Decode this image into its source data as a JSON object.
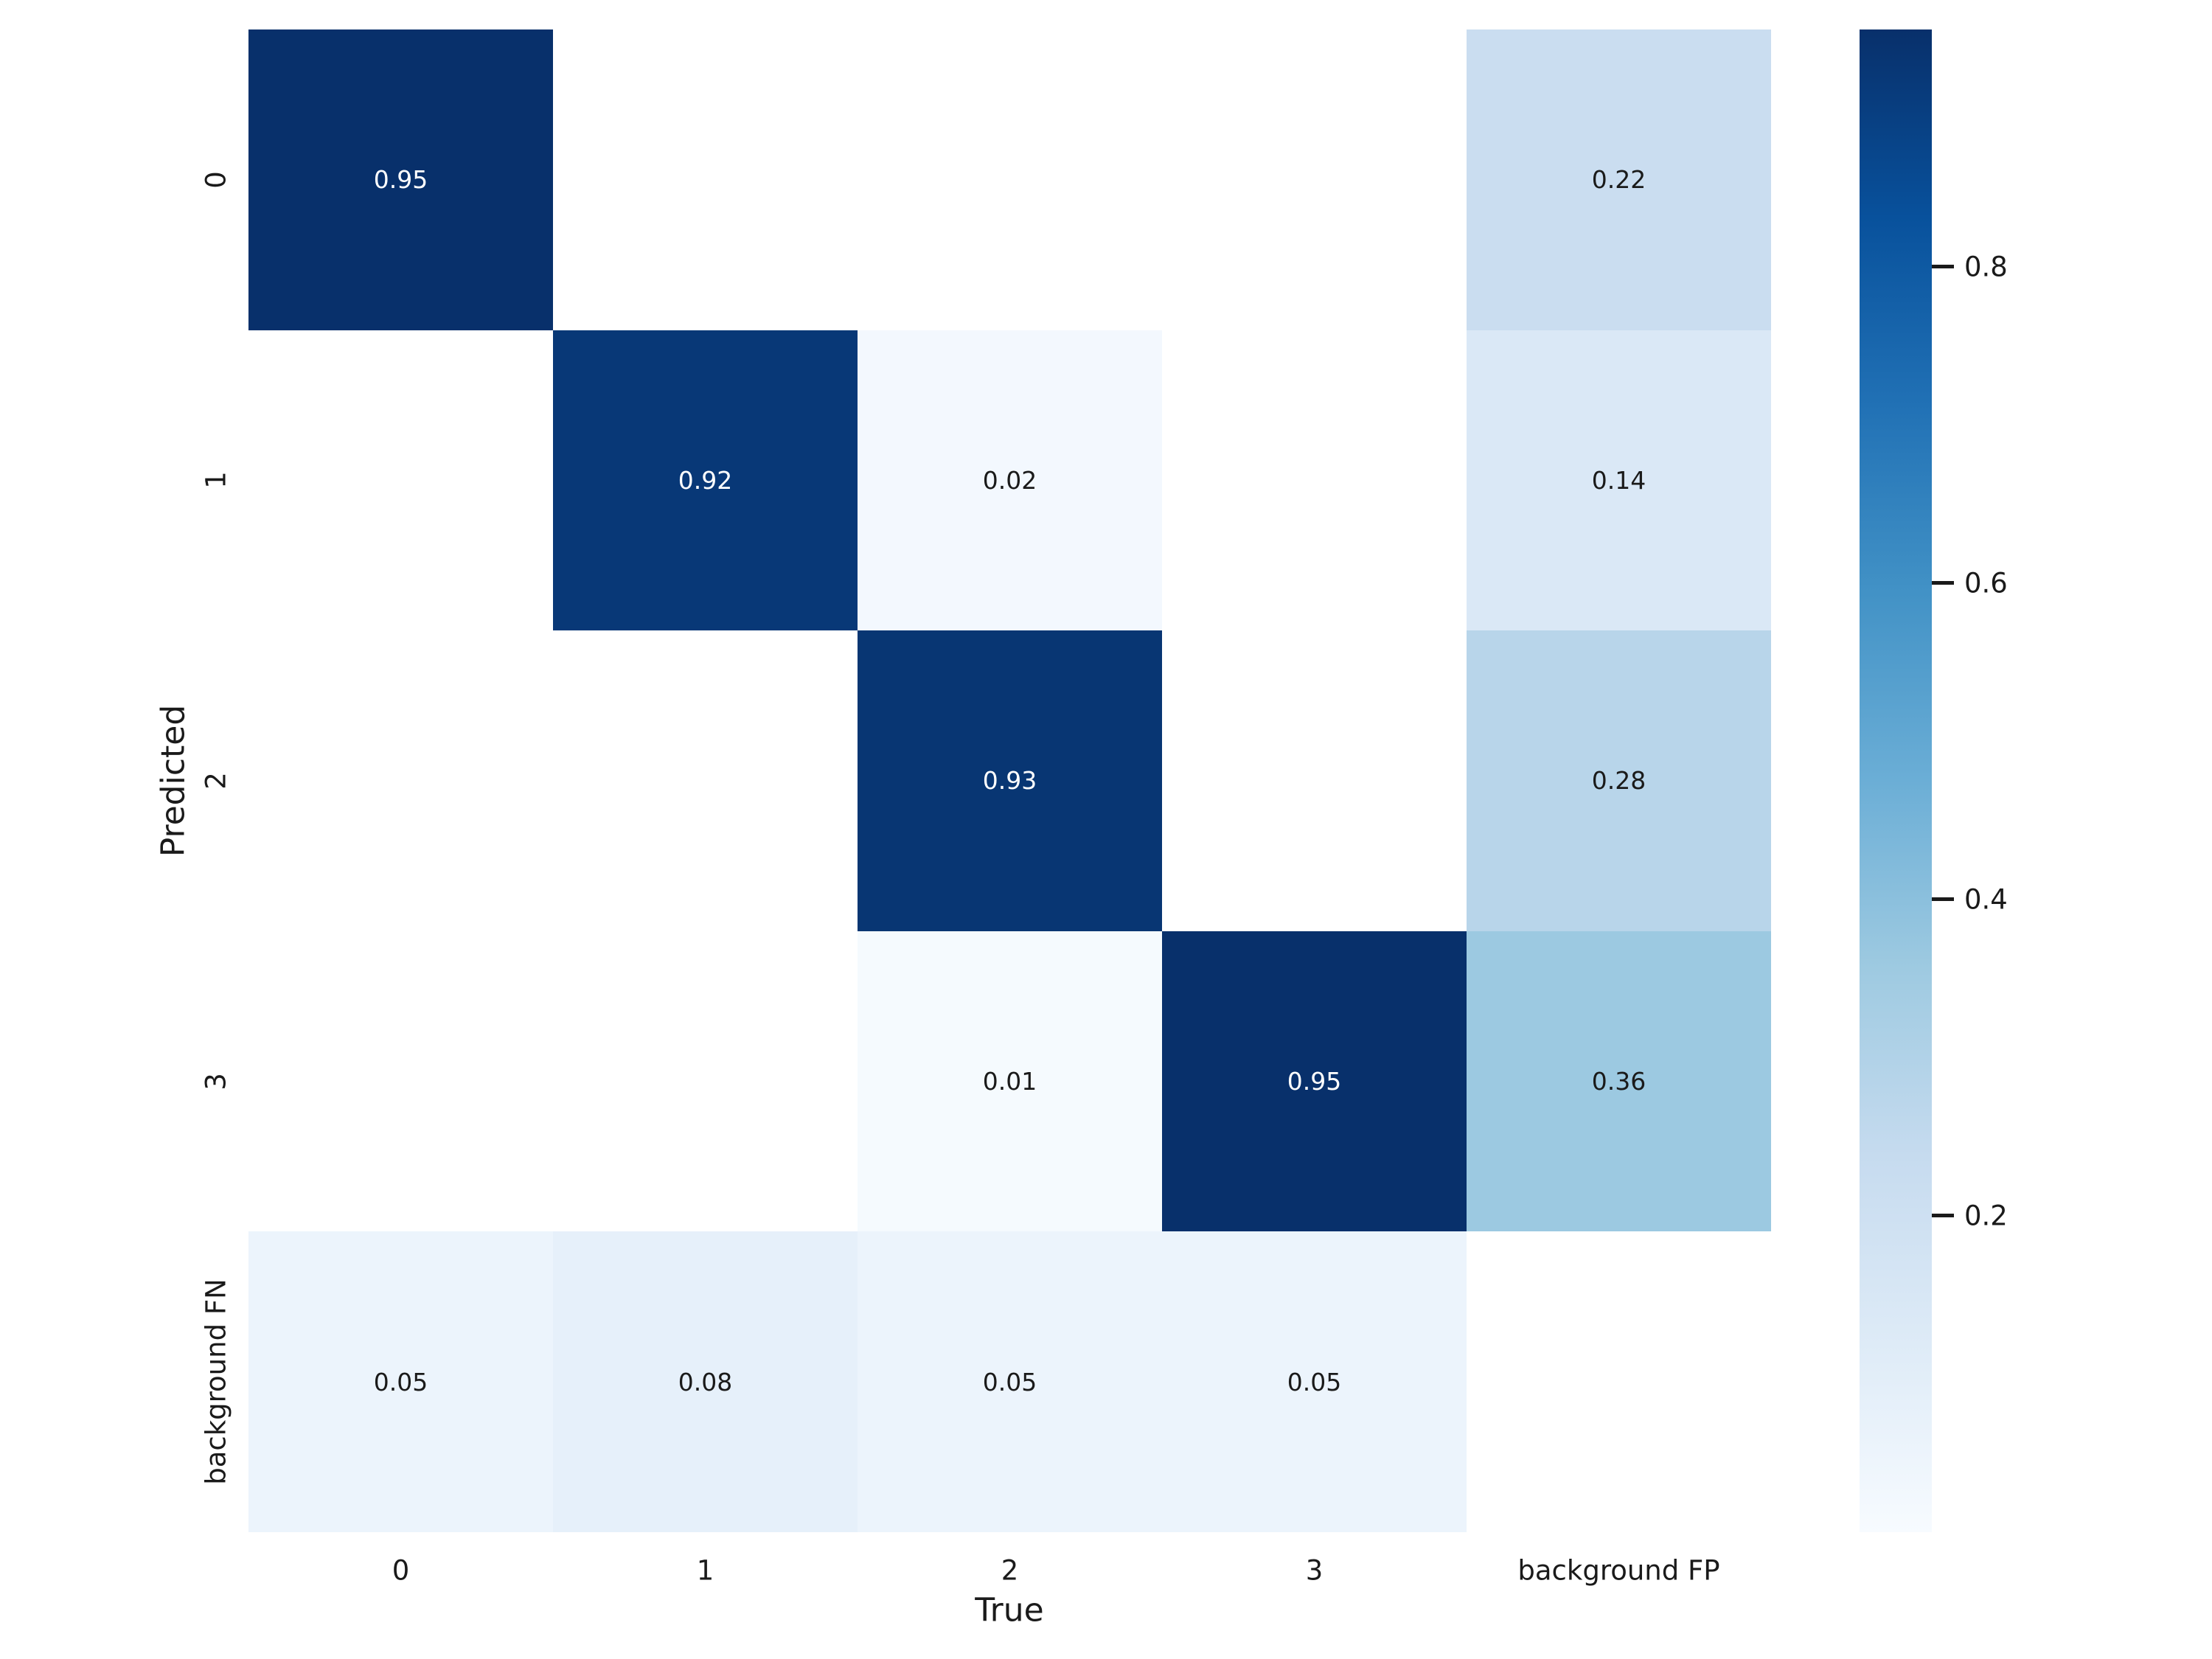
{
  "chart_data": {
    "type": "heatmap",
    "title": "",
    "xlabel": "True",
    "ylabel": "Predicted",
    "x_categories": [
      "0",
      "1",
      "2",
      "3",
      "background FP"
    ],
    "y_categories": [
      "0",
      "1",
      "2",
      "3",
      "background FN"
    ],
    "values": [
      [
        0.95,
        null,
        null,
        null,
        0.22
      ],
      [
        null,
        0.92,
        0.02,
        null,
        0.14
      ],
      [
        null,
        null,
        0.93,
        null,
        0.28
      ],
      [
        null,
        null,
        0.01,
        0.95,
        0.36
      ],
      [
        0.05,
        0.08,
        0.05,
        0.05,
        null
      ]
    ],
    "cell_styles": [
      [
        {
          "bg": "#08306b",
          "fg": "#ffffff"
        },
        null,
        null,
        null,
        {
          "bg": "#caddf0",
          "fg": "#1a1a1a"
        }
      ],
      [
        null,
        {
          "bg": "#083877",
          "fg": "#ffffff"
        },
        {
          "bg": "#f3f8fe",
          "fg": "#1a1a1a"
        },
        null,
        {
          "bg": "#dae8f6",
          "fg": "#1a1a1a"
        }
      ],
      [
        null,
        null,
        {
          "bg": "#083673",
          "fg": "#ffffff"
        },
        null,
        {
          "bg": "#b8d5ea",
          "fg": "#1a1a1a"
        }
      ],
      [
        null,
        null,
        {
          "bg": "#f5fafe",
          "fg": "#1a1a1a"
        },
        {
          "bg": "#08306b",
          "fg": "#ffffff"
        },
        {
          "bg": "#9cc9e1",
          "fg": "#1a1a1a"
        }
      ],
      [
        {
          "bg": "#ecf4fc",
          "fg": "#1a1a1a"
        },
        {
          "bg": "#e6f0fa",
          "fg": "#1a1a1a"
        },
        {
          "bg": "#ecf4fc",
          "fg": "#1a1a1a"
        },
        {
          "bg": "#ecf4fc",
          "fg": "#1a1a1a"
        },
        null
      ]
    ],
    "empty_cell_color": "#ffffff",
    "value_format_decimals": 2,
    "colormap": "Blues",
    "vmin": 0,
    "vmax": 0.95,
    "grid": false,
    "legend_position": "none",
    "colorbar": {
      "position": "right",
      "ticks": [
        0.8,
        0.6,
        0.4,
        0.2
      ],
      "tick_labels": [
        "0.8",
        "0.6",
        "0.4",
        "0.2"
      ],
      "gradient_top_to_bottom": [
        "#08306b",
        "#08519c",
        "#2171b5",
        "#4292c6",
        "#6baed6",
        "#9ecae1",
        "#c6dbef",
        "#deebf7",
        "#f7fbff"
      ]
    }
  }
}
